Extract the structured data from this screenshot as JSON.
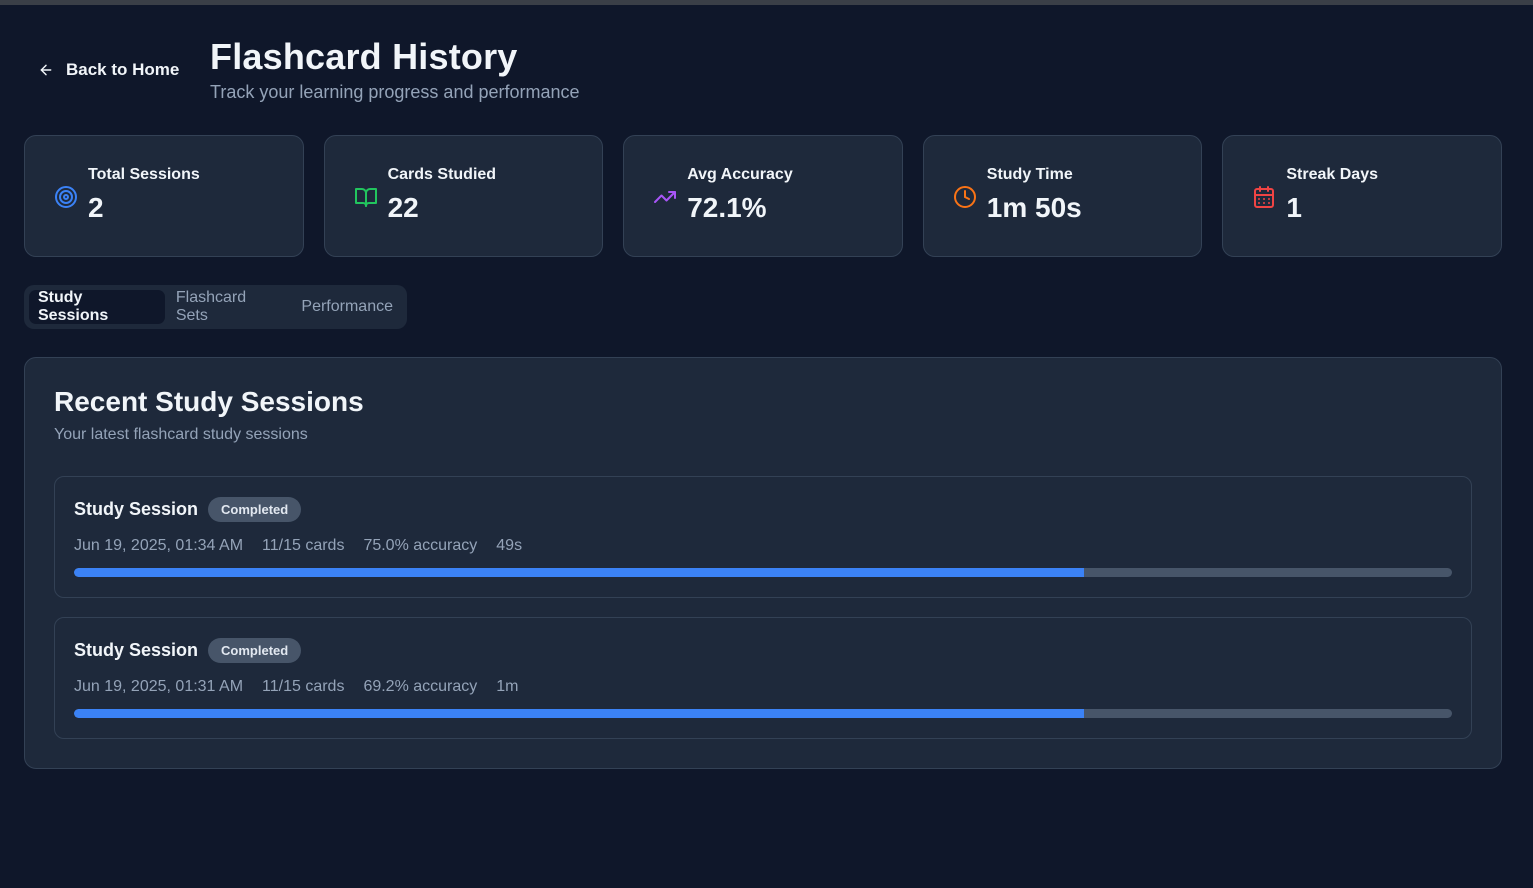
{
  "header": {
    "back_label": "Back to Home",
    "title": "Flashcard History",
    "subtitle": "Track your learning progress and performance"
  },
  "stats": [
    {
      "label": "Total Sessions",
      "value": "2",
      "icon": "target-icon",
      "color": "#3b82f6"
    },
    {
      "label": "Cards Studied",
      "value": "22",
      "icon": "book-open-icon",
      "color": "#22c55e"
    },
    {
      "label": "Avg Accuracy",
      "value": "72.1%",
      "icon": "trending-up-icon",
      "color": "#a855f7"
    },
    {
      "label": "Study Time",
      "value": "1m 50s",
      "icon": "clock-icon",
      "color": "#f97316"
    },
    {
      "label": "Streak Days",
      "value": "1",
      "icon": "calendar-icon",
      "color": "#ef4444"
    }
  ],
  "tabs": [
    {
      "label": "Study Sessions",
      "active": true
    },
    {
      "label": "Flashcard Sets",
      "active": false
    },
    {
      "label": "Performance",
      "active": false
    }
  ],
  "panel": {
    "title": "Recent Study Sessions",
    "subtitle": "Your latest flashcard study sessions"
  },
  "sessions": [
    {
      "title": "Study Session",
      "status": "Completed",
      "date": "Jun 19, 2025, 01:34 AM",
      "cards": "11/15 cards",
      "accuracy": "75.0% accuracy",
      "duration": "49s",
      "progress": 0.733
    },
    {
      "title": "Study Session",
      "status": "Completed",
      "date": "Jun 19, 2025, 01:31 AM",
      "cards": "11/15 cards",
      "accuracy": "69.2% accuracy",
      "duration": "1m",
      "progress": 0.733
    }
  ]
}
